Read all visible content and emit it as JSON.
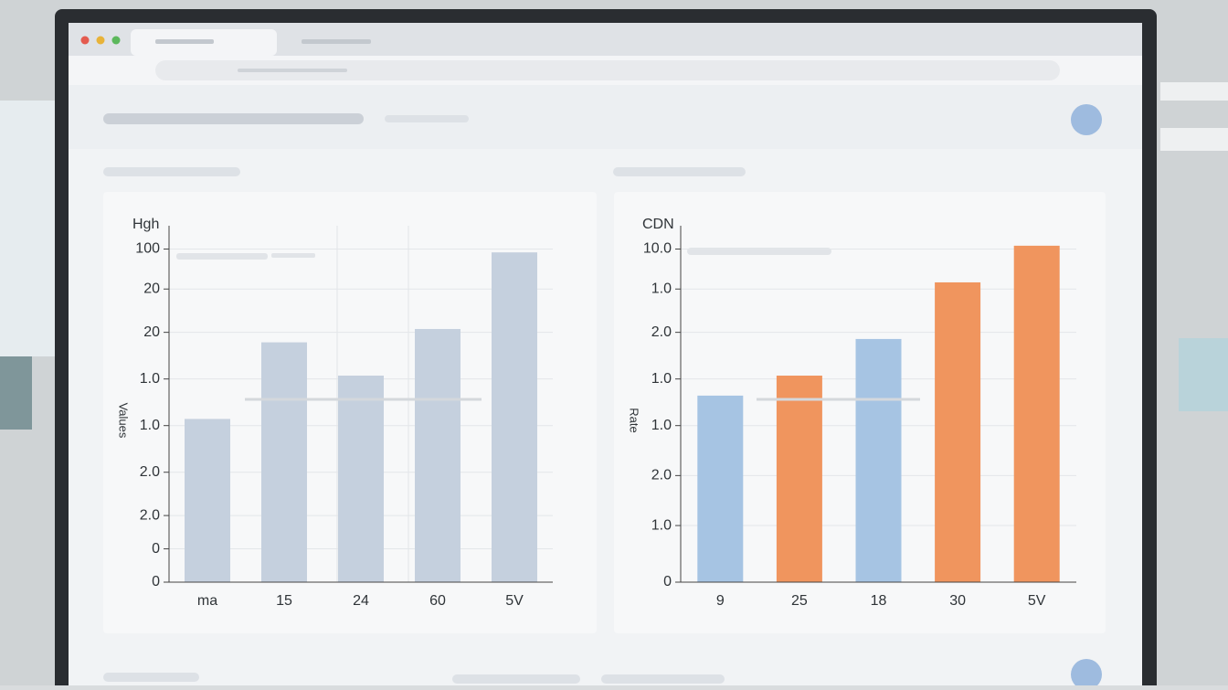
{
  "chart_data": [
    {
      "type": "bar",
      "title": "Hgh",
      "y_label": "Values",
      "categories": [
        "ma",
        "15",
        "24",
        "60",
        "5V"
      ],
      "values": [
        49,
        72,
        62,
        76,
        99
      ],
      "colors": [
        "#c5d0de",
        "#c5d0de",
        "#c5d0de",
        "#c5d0de",
        "#c5d0de"
      ],
      "ylim": [
        0,
        107
      ],
      "yticks": [
        0,
        {
          "value": 10,
          "label": "0"
        },
        {
          "value": 20,
          "label": "2.0"
        },
        {
          "value": 33,
          "label": "2.0"
        },
        {
          "value": 47,
          "label": "1.0"
        },
        {
          "value": 61,
          "label": "1.0"
        },
        {
          "value": 75,
          "label": "20"
        },
        {
          "value": 88,
          "label": "20"
        },
        100
      ],
      "grid": true
    },
    {
      "type": "bar",
      "title": "CDN",
      "y_label": "Rate",
      "categories": [
        "9",
        "25",
        "18",
        "30",
        "5V"
      ],
      "values": [
        56,
        62,
        73,
        90,
        101
      ],
      "colors": [
        "#a6c4e3",
        "#f0955e",
        "#a6c4e3",
        "#f0955e",
        "#f0955e"
      ],
      "ylim": [
        0,
        107
      ],
      "yticks": [
        0,
        {
          "value": 17,
          "label": "1.0"
        },
        {
          "value": 32,
          "label": "2.0"
        },
        {
          "value": 47,
          "label": "1.0"
        },
        {
          "value": 61,
          "label": "1.0"
        },
        {
          "value": 75,
          "label": "2.0"
        },
        {
          "value": 88,
          "label": "1.0"
        },
        {
          "value": 100,
          "label": "10.0"
        }
      ],
      "grid": true
    }
  ]
}
